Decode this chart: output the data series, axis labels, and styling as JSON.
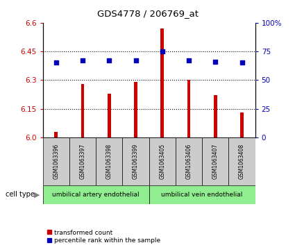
{
  "title": "GDS4778 / 206769_at",
  "samples": [
    "GSM1063396",
    "GSM1063397",
    "GSM1063398",
    "GSM1063399",
    "GSM1063405",
    "GSM1063406",
    "GSM1063407",
    "GSM1063408"
  ],
  "transformed_count": [
    6.03,
    6.28,
    6.23,
    6.29,
    6.57,
    6.3,
    6.22,
    6.13
  ],
  "percentile_rank": [
    65,
    67,
    67,
    67,
    75,
    67,
    66,
    65
  ],
  "ylim_left": [
    6.0,
    6.6
  ],
  "ylim_right": [
    0,
    100
  ],
  "yticks_left": [
    6.0,
    6.15,
    6.3,
    6.45,
    6.6
  ],
  "yticks_right": [
    0,
    25,
    50,
    75,
    100
  ],
  "cell_types": [
    {
      "label": "umbilical artery endothelial",
      "spans": [
        0,
        3
      ]
    },
    {
      "label": "umbilical vein endothelial",
      "spans": [
        4,
        7
      ]
    }
  ],
  "cell_type_label": "cell type",
  "bar_color": "#CC0000",
  "dot_color": "#0000BB",
  "sample_box_color": "#cccccc",
  "cell_type_box_color": "#90EE90",
  "tick_color_left": "#CC0000",
  "tick_color_right": "#0000BB",
  "legend_items": [
    "transformed count",
    "percentile rank within the sample"
  ]
}
